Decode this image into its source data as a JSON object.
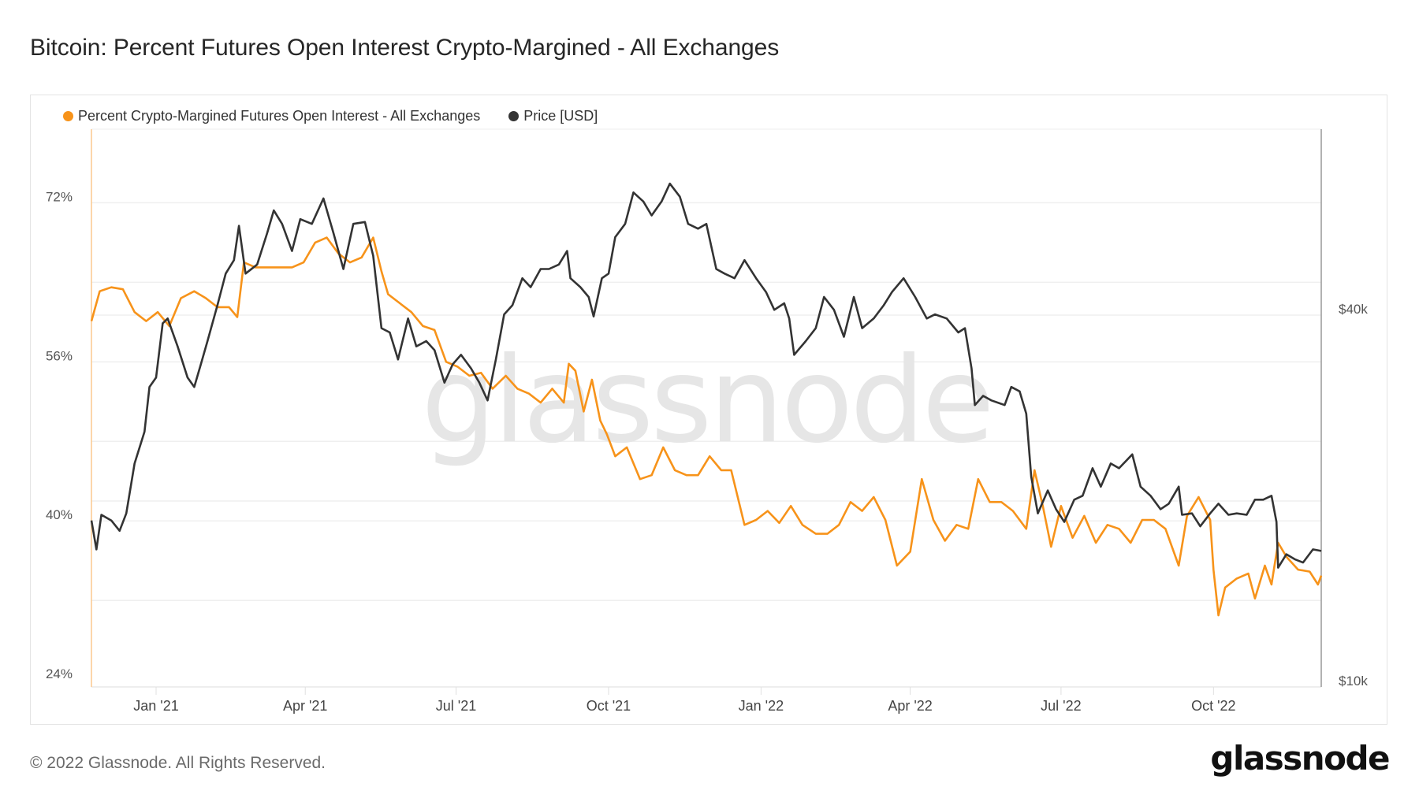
{
  "title": "Bitcoin: Percent Futures Open Interest Crypto-Margined - All Exchanges",
  "footer": "© 2022 Glassnode. All Rights Reserved.",
  "logo_text": "glassnode",
  "watermark_text": "glassnode",
  "chart_data": {
    "type": "line",
    "title": "Bitcoin: Percent Futures Open Interest Crypto-Margined - All Exchanges",
    "legend_position": "top-left",
    "grid": true,
    "x_ticks": [
      {
        "date": "2021-01-01",
        "label": "Jan '21"
      },
      {
        "date": "2021-04-01",
        "label": "Apr '21"
      },
      {
        "date": "2021-07-01",
        "label": "Jul '21"
      },
      {
        "date": "2021-10-01",
        "label": "Oct '21"
      },
      {
        "date": "2022-01-01",
        "label": "Jan '22"
      },
      {
        "date": "2022-04-01",
        "label": "Apr '22"
      },
      {
        "date": "2022-07-01",
        "label": "Jul '22"
      },
      {
        "date": "2022-10-01",
        "label": "Oct '22"
      }
    ],
    "xlim": [
      "2020-11-23",
      "2022-12-05"
    ],
    "left_axis": {
      "scale": "linear",
      "ylim": [
        23.3,
        79.4
      ],
      "ticks": [
        {
          "value": 72,
          "label": "72%"
        },
        {
          "value": 56,
          "label": "56%"
        },
        {
          "value": 40,
          "label": "40%"
        },
        {
          "value": 24,
          "label": "24%"
        }
      ]
    },
    "right_axis": {
      "scale": "log",
      "ylim": [
        10000,
        80000
      ],
      "ticks": [
        {
          "value": 40000,
          "label": "$40k"
        },
        {
          "value": 10000,
          "label": "$10k"
        }
      ]
    },
    "series": [
      {
        "name": "Percent Crypto-Margined Futures Open Interest - All Exchanges",
        "axis": "left",
        "color": "#f7931a",
        "points": [
          [
            "2020-11-23",
            60.1
          ],
          [
            "2020-11-28",
            63.1
          ],
          [
            "2020-12-05",
            63.5
          ],
          [
            "2020-12-12",
            63.3
          ],
          [
            "2020-12-19",
            61.0
          ],
          [
            "2020-12-26",
            60.1
          ],
          [
            "2021-01-02",
            61.0
          ],
          [
            "2021-01-09",
            59.6
          ],
          [
            "2021-01-16",
            62.4
          ],
          [
            "2021-01-24",
            63.1
          ],
          [
            "2021-01-31",
            62.4
          ],
          [
            "2021-02-07",
            61.5
          ],
          [
            "2021-02-14",
            61.5
          ],
          [
            "2021-02-19",
            60.5
          ],
          [
            "2021-02-23",
            66.0
          ],
          [
            "2021-03-02",
            65.5
          ],
          [
            "2021-03-09",
            65.5
          ],
          [
            "2021-03-16",
            65.5
          ],
          [
            "2021-03-24",
            65.5
          ],
          [
            "2021-03-31",
            66.0
          ],
          [
            "2021-04-07",
            68.0
          ],
          [
            "2021-04-14",
            68.5
          ],
          [
            "2021-04-21",
            66.9
          ],
          [
            "2021-04-28",
            66.0
          ],
          [
            "2021-05-05",
            66.5
          ],
          [
            "2021-05-12",
            68.5
          ],
          [
            "2021-05-17",
            65.1
          ],
          [
            "2021-05-21",
            62.8
          ],
          [
            "2021-05-28",
            61.9
          ],
          [
            "2021-06-04",
            61.0
          ],
          [
            "2021-06-11",
            59.6
          ],
          [
            "2021-06-18",
            59.2
          ],
          [
            "2021-06-25",
            56.0
          ],
          [
            "2021-07-02",
            55.5
          ],
          [
            "2021-07-09",
            54.6
          ],
          [
            "2021-07-16",
            54.9
          ],
          [
            "2021-07-23",
            53.3
          ],
          [
            "2021-07-31",
            54.6
          ],
          [
            "2021-08-07",
            53.3
          ],
          [
            "2021-08-14",
            52.8
          ],
          [
            "2021-08-21",
            51.9
          ],
          [
            "2021-08-28",
            53.3
          ],
          [
            "2021-09-04",
            51.9
          ],
          [
            "2021-09-07",
            55.8
          ],
          [
            "2021-09-11",
            55.1
          ],
          [
            "2021-09-16",
            51.0
          ],
          [
            "2021-09-21",
            54.2
          ],
          [
            "2021-09-26",
            50.1
          ],
          [
            "2021-09-30",
            48.7
          ],
          [
            "2021-10-05",
            46.5
          ],
          [
            "2021-10-12",
            47.4
          ],
          [
            "2021-10-20",
            44.2
          ],
          [
            "2021-10-27",
            44.6
          ],
          [
            "2021-11-03",
            47.4
          ],
          [
            "2021-11-10",
            45.1
          ],
          [
            "2021-11-17",
            44.6
          ],
          [
            "2021-11-24",
            44.6
          ],
          [
            "2021-12-01",
            46.5
          ],
          [
            "2021-12-08",
            45.1
          ],
          [
            "2021-12-14",
            45.1
          ],
          [
            "2021-12-22",
            39.6
          ],
          [
            "2021-12-29",
            40.1
          ],
          [
            "2022-01-05",
            41.0
          ],
          [
            "2022-01-12",
            39.8
          ],
          [
            "2022-01-19",
            41.5
          ],
          [
            "2022-01-26",
            39.6
          ],
          [
            "2022-02-03",
            38.7
          ],
          [
            "2022-02-10",
            38.7
          ],
          [
            "2022-02-17",
            39.6
          ],
          [
            "2022-02-24",
            41.9
          ],
          [
            "2022-03-03",
            41.0
          ],
          [
            "2022-03-10",
            42.4
          ],
          [
            "2022-03-17",
            40.1
          ],
          [
            "2022-03-24",
            35.5
          ],
          [
            "2022-04-01",
            36.9
          ],
          [
            "2022-04-08",
            44.2
          ],
          [
            "2022-04-15",
            40.1
          ],
          [
            "2022-04-22",
            38.0
          ],
          [
            "2022-04-29",
            39.6
          ],
          [
            "2022-05-06",
            39.2
          ],
          [
            "2022-05-12",
            44.2
          ],
          [
            "2022-05-19",
            41.9
          ],
          [
            "2022-05-26",
            41.9
          ],
          [
            "2022-06-02",
            41.0
          ],
          [
            "2022-06-10",
            39.2
          ],
          [
            "2022-06-15",
            45.1
          ],
          [
            "2022-06-20",
            41.5
          ],
          [
            "2022-06-25",
            37.4
          ],
          [
            "2022-07-01",
            41.5
          ],
          [
            "2022-07-08",
            38.3
          ],
          [
            "2022-07-15",
            40.5
          ],
          [
            "2022-07-22",
            37.8
          ],
          [
            "2022-07-29",
            39.6
          ],
          [
            "2022-08-05",
            39.2
          ],
          [
            "2022-08-12",
            37.8
          ],
          [
            "2022-08-19",
            40.1
          ],
          [
            "2022-08-26",
            40.1
          ],
          [
            "2022-09-02",
            39.2
          ],
          [
            "2022-09-10",
            35.5
          ],
          [
            "2022-09-15",
            40.5
          ],
          [
            "2022-09-22",
            42.4
          ],
          [
            "2022-09-29",
            40.1
          ],
          [
            "2022-10-01",
            35.1
          ],
          [
            "2022-10-04",
            30.5
          ],
          [
            "2022-10-08",
            33.3
          ],
          [
            "2022-10-15",
            34.2
          ],
          [
            "2022-10-22",
            34.7
          ],
          [
            "2022-10-26",
            32.2
          ],
          [
            "2022-11-01",
            35.5
          ],
          [
            "2022-11-05",
            33.6
          ],
          [
            "2022-11-09",
            37.8
          ],
          [
            "2022-11-14",
            36.4
          ],
          [
            "2022-11-21",
            35.1
          ],
          [
            "2022-11-28",
            34.9
          ],
          [
            "2022-12-03",
            33.6
          ],
          [
            "2022-12-05",
            34.5
          ]
        ]
      },
      {
        "name": "Price [USD]",
        "axis": "right",
        "color": "#333333",
        "points": [
          [
            "2020-11-23",
            18600
          ],
          [
            "2020-11-26",
            16700
          ],
          [
            "2020-11-29",
            19000
          ],
          [
            "2020-12-05",
            18600
          ],
          [
            "2020-12-10",
            17900
          ],
          [
            "2020-12-14",
            19100
          ],
          [
            "2020-12-19",
            23000
          ],
          [
            "2020-12-25",
            25900
          ],
          [
            "2020-12-28",
            30600
          ],
          [
            "2021-01-01",
            31700
          ],
          [
            "2021-01-05",
            38800
          ],
          [
            "2021-01-08",
            39500
          ],
          [
            "2021-01-14",
            35600
          ],
          [
            "2021-01-20",
            31700
          ],
          [
            "2021-01-24",
            30600
          ],
          [
            "2021-01-28",
            33300
          ],
          [
            "2021-02-01",
            36300
          ],
          [
            "2021-02-07",
            41500
          ],
          [
            "2021-02-12",
            46700
          ],
          [
            "2021-02-17",
            49100
          ],
          [
            "2021-02-20",
            55800
          ],
          [
            "2021-02-24",
            46700
          ],
          [
            "2021-03-03",
            48300
          ],
          [
            "2021-03-09",
            54300
          ],
          [
            "2021-03-13",
            59100
          ],
          [
            "2021-03-18",
            56200
          ],
          [
            "2021-03-24",
            50800
          ],
          [
            "2021-03-29",
            57200
          ],
          [
            "2021-04-05",
            56200
          ],
          [
            "2021-04-12",
            61800
          ],
          [
            "2021-04-18",
            54300
          ],
          [
            "2021-04-24",
            47500
          ],
          [
            "2021-04-30",
            56200
          ],
          [
            "2021-05-07",
            56600
          ],
          [
            "2021-05-12",
            49900
          ],
          [
            "2021-05-17",
            38100
          ],
          [
            "2021-05-22",
            37500
          ],
          [
            "2021-05-27",
            33900
          ],
          [
            "2021-06-02",
            39500
          ],
          [
            "2021-06-07",
            35600
          ],
          [
            "2021-06-13",
            36300
          ],
          [
            "2021-06-18",
            35100
          ],
          [
            "2021-06-24",
            31100
          ],
          [
            "2021-06-29",
            33300
          ],
          [
            "2021-07-04",
            34500
          ],
          [
            "2021-07-10",
            32800
          ],
          [
            "2021-07-15",
            31100
          ],
          [
            "2021-07-20",
            29100
          ],
          [
            "2021-07-25",
            33900
          ],
          [
            "2021-07-30",
            40100
          ],
          [
            "2021-08-04",
            41500
          ],
          [
            "2021-08-10",
            45900
          ],
          [
            "2021-08-15",
            44400
          ],
          [
            "2021-08-21",
            47500
          ],
          [
            "2021-08-26",
            47500
          ],
          [
            "2021-09-01",
            48300
          ],
          [
            "2021-09-06",
            50800
          ],
          [
            "2021-09-08",
            45900
          ],
          [
            "2021-09-14",
            44400
          ],
          [
            "2021-09-19",
            42800
          ],
          [
            "2021-09-22",
            39800
          ],
          [
            "2021-09-27",
            45900
          ],
          [
            "2021-10-01",
            46700
          ],
          [
            "2021-10-05",
            53500
          ],
          [
            "2021-10-11",
            56200
          ],
          [
            "2021-10-16",
            63200
          ],
          [
            "2021-10-22",
            61100
          ],
          [
            "2021-10-27",
            58000
          ],
          [
            "2021-11-02",
            61100
          ],
          [
            "2021-11-07",
            65300
          ],
          [
            "2021-11-13",
            62200
          ],
          [
            "2021-11-18",
            56200
          ],
          [
            "2021-11-24",
            55200
          ],
          [
            "2021-11-29",
            56200
          ],
          [
            "2021-12-05",
            47500
          ],
          [
            "2021-12-10",
            46700
          ],
          [
            "2021-12-16",
            45900
          ],
          [
            "2021-12-22",
            49100
          ],
          [
            "2021-12-29",
            45900
          ],
          [
            "2022-01-04",
            43600
          ],
          [
            "2022-01-09",
            40800
          ],
          [
            "2022-01-15",
            41800
          ],
          [
            "2022-01-18",
            39500
          ],
          [
            "2022-01-21",
            34500
          ],
          [
            "2022-01-28",
            36300
          ],
          [
            "2022-02-03",
            38100
          ],
          [
            "2022-02-08",
            42800
          ],
          [
            "2022-02-14",
            40800
          ],
          [
            "2022-02-20",
            36900
          ],
          [
            "2022-02-26",
            42800
          ],
          [
            "2022-03-03",
            38100
          ],
          [
            "2022-03-10",
            39500
          ],
          [
            "2022-03-16",
            41500
          ],
          [
            "2022-03-21",
            43600
          ],
          [
            "2022-03-28",
            45900
          ],
          [
            "2022-04-04",
            42800
          ],
          [
            "2022-04-11",
            39500
          ],
          [
            "2022-04-16",
            40100
          ],
          [
            "2022-04-23",
            39500
          ],
          [
            "2022-04-30",
            37500
          ],
          [
            "2022-05-04",
            38100
          ],
          [
            "2022-05-08",
            32800
          ],
          [
            "2022-05-10",
            28600
          ],
          [
            "2022-05-15",
            29600
          ],
          [
            "2022-05-20",
            29100
          ],
          [
            "2022-05-28",
            28600
          ],
          [
            "2022-06-01",
            30600
          ],
          [
            "2022-06-06",
            30100
          ],
          [
            "2022-06-10",
            27700
          ],
          [
            "2022-06-13",
            21900
          ],
          [
            "2022-06-17",
            19100
          ],
          [
            "2022-06-23",
            20800
          ],
          [
            "2022-06-28",
            19400
          ],
          [
            "2022-07-03",
            18500
          ],
          [
            "2022-07-09",
            20100
          ],
          [
            "2022-07-14",
            20400
          ],
          [
            "2022-07-20",
            22600
          ],
          [
            "2022-07-25",
            21100
          ],
          [
            "2022-07-31",
            23000
          ],
          [
            "2022-08-05",
            22600
          ],
          [
            "2022-08-13",
            23800
          ],
          [
            "2022-08-18",
            21100
          ],
          [
            "2022-08-24",
            20400
          ],
          [
            "2022-08-30",
            19400
          ],
          [
            "2022-09-04",
            19800
          ],
          [
            "2022-09-10",
            21100
          ],
          [
            "2022-09-12",
            19000
          ],
          [
            "2022-09-18",
            19100
          ],
          [
            "2022-09-23",
            18200
          ],
          [
            "2022-09-29",
            19100
          ],
          [
            "2022-10-04",
            19800
          ],
          [
            "2022-10-10",
            19000
          ],
          [
            "2022-10-15",
            19100
          ],
          [
            "2022-10-21",
            19000
          ],
          [
            "2022-10-26",
            20100
          ],
          [
            "2022-10-31",
            20100
          ],
          [
            "2022-11-05",
            20400
          ],
          [
            "2022-11-08",
            18500
          ],
          [
            "2022-11-09",
            15600
          ],
          [
            "2022-11-14",
            16400
          ],
          [
            "2022-11-19",
            16100
          ],
          [
            "2022-11-24",
            15900
          ],
          [
            "2022-11-30",
            16700
          ],
          [
            "2022-12-05",
            16600
          ]
        ]
      }
    ]
  }
}
